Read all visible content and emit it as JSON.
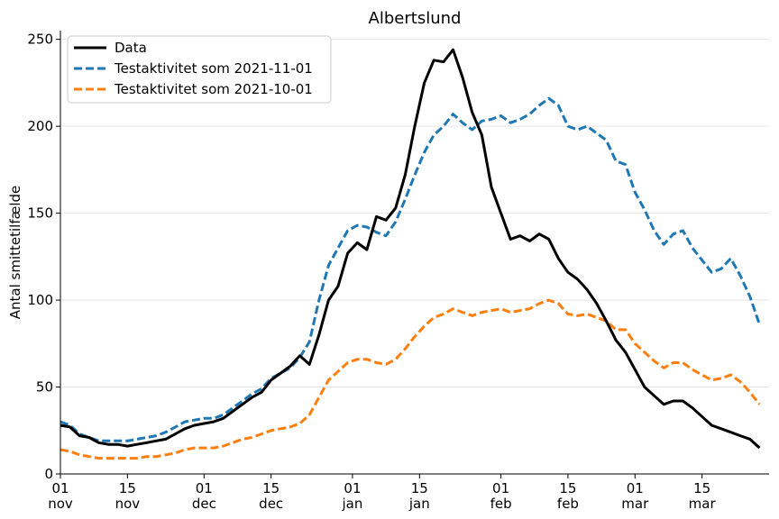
{
  "chart_data": {
    "type": "line",
    "title": "Albertslund",
    "xlabel": "",
    "ylabel": "Antal smittetilfælde",
    "ylim": [
      0,
      255
    ],
    "xlim": [
      "2021-11-01",
      "2022-03-29"
    ],
    "y_ticks": [
      0,
      50,
      100,
      150,
      200,
      250
    ],
    "x_ticks": [
      {
        "date": "2021-11-01",
        "day": "01",
        "month": "nov"
      },
      {
        "date": "2021-11-15",
        "day": "15",
        "month": "nov"
      },
      {
        "date": "2021-12-01",
        "day": "01",
        "month": "dec"
      },
      {
        "date": "2021-12-15",
        "day": "15",
        "month": "dec"
      },
      {
        "date": "2022-01-01",
        "day": "01",
        "month": "jan"
      },
      {
        "date": "2022-01-15",
        "day": "15",
        "month": "jan"
      },
      {
        "date": "2022-02-01",
        "day": "01",
        "month": "feb"
      },
      {
        "date": "2022-02-15",
        "day": "15",
        "month": "feb"
      },
      {
        "date": "2022-03-01",
        "day": "01",
        "month": "mar"
      },
      {
        "date": "2022-03-15",
        "day": "15",
        "month": "mar"
      }
    ],
    "grid": "horizontal",
    "legend": "top-left",
    "series": [
      {
        "name": "Data",
        "color": "#000000",
        "style": "solid",
        "points": [
          [
            "2021-11-01",
            28
          ],
          [
            "2021-11-03",
            27
          ],
          [
            "2021-11-05",
            22
          ],
          [
            "2021-11-07",
            21
          ],
          [
            "2021-11-09",
            18
          ],
          [
            "2021-11-11",
            17
          ],
          [
            "2021-11-13",
            17
          ],
          [
            "2021-11-15",
            16
          ],
          [
            "2021-11-17",
            17
          ],
          [
            "2021-11-19",
            18
          ],
          [
            "2021-11-21",
            19
          ],
          [
            "2021-11-23",
            20
          ],
          [
            "2021-11-25",
            23
          ],
          [
            "2021-11-27",
            26
          ],
          [
            "2021-11-29",
            28
          ],
          [
            "2021-12-01",
            29
          ],
          [
            "2021-12-03",
            30
          ],
          [
            "2021-12-05",
            32
          ],
          [
            "2021-12-07",
            36
          ],
          [
            "2021-12-09",
            40
          ],
          [
            "2021-12-11",
            44
          ],
          [
            "2021-12-13",
            47
          ],
          [
            "2021-12-15",
            54
          ],
          [
            "2021-12-17",
            58
          ],
          [
            "2021-12-19",
            62
          ],
          [
            "2021-12-21",
            68
          ],
          [
            "2021-12-23",
            63
          ],
          [
            "2021-12-25",
            80
          ],
          [
            "2021-12-27",
            100
          ],
          [
            "2021-12-29",
            108
          ],
          [
            "2021-12-31",
            127
          ],
          [
            "2022-01-02",
            133
          ],
          [
            "2022-01-04",
            129
          ],
          [
            "2022-01-06",
            148
          ],
          [
            "2022-01-08",
            146
          ],
          [
            "2022-01-10",
            153
          ],
          [
            "2022-01-12",
            172
          ],
          [
            "2022-01-14",
            200
          ],
          [
            "2022-01-16",
            225
          ],
          [
            "2022-01-18",
            238
          ],
          [
            "2022-01-20",
            237
          ],
          [
            "2022-01-22",
            244
          ],
          [
            "2022-01-24",
            228
          ],
          [
            "2022-01-26",
            208
          ],
          [
            "2022-01-28",
            195
          ],
          [
            "2022-01-30",
            165
          ],
          [
            "2022-02-01",
            150
          ],
          [
            "2022-02-03",
            135
          ],
          [
            "2022-02-05",
            137
          ],
          [
            "2022-02-07",
            134
          ],
          [
            "2022-02-09",
            138
          ],
          [
            "2022-02-11",
            135
          ],
          [
            "2022-02-13",
            124
          ],
          [
            "2022-02-15",
            116
          ],
          [
            "2022-02-17",
            112
          ],
          [
            "2022-02-19",
            106
          ],
          [
            "2022-02-21",
            98
          ],
          [
            "2022-02-23",
            88
          ],
          [
            "2022-02-25",
            77
          ],
          [
            "2022-02-27",
            70
          ],
          [
            "2022-03-01",
            60
          ],
          [
            "2022-03-03",
            50
          ],
          [
            "2022-03-05",
            45
          ],
          [
            "2022-03-07",
            40
          ],
          [
            "2022-03-09",
            42
          ],
          [
            "2022-03-11",
            42
          ],
          [
            "2022-03-13",
            38
          ],
          [
            "2022-03-15",
            33
          ],
          [
            "2022-03-17",
            28
          ],
          [
            "2022-03-19",
            26
          ],
          [
            "2022-03-21",
            24
          ],
          [
            "2022-03-23",
            22
          ],
          [
            "2022-03-25",
            20
          ],
          [
            "2022-03-27",
            15
          ]
        ]
      },
      {
        "name": "Testaktivitet som 2021-11-01",
        "color": "#1f77b4",
        "style": "dashed",
        "points": [
          [
            "2021-11-01",
            30
          ],
          [
            "2021-11-03",
            28
          ],
          [
            "2021-11-05",
            23
          ],
          [
            "2021-11-07",
            21
          ],
          [
            "2021-11-09",
            19
          ],
          [
            "2021-11-11",
            19
          ],
          [
            "2021-11-13",
            19
          ],
          [
            "2021-11-15",
            19
          ],
          [
            "2021-11-17",
            20
          ],
          [
            "2021-11-19",
            21
          ],
          [
            "2021-11-21",
            22
          ],
          [
            "2021-11-23",
            24
          ],
          [
            "2021-11-25",
            27
          ],
          [
            "2021-11-27",
            30
          ],
          [
            "2021-11-29",
            31
          ],
          [
            "2021-12-01",
            32
          ],
          [
            "2021-12-03",
            32
          ],
          [
            "2021-12-05",
            34
          ],
          [
            "2021-12-07",
            38
          ],
          [
            "2021-12-09",
            42
          ],
          [
            "2021-12-11",
            46
          ],
          [
            "2021-12-13",
            49
          ],
          [
            "2021-12-15",
            55
          ],
          [
            "2021-12-17",
            58
          ],
          [
            "2021-12-19",
            61
          ],
          [
            "2021-12-21",
            67
          ],
          [
            "2021-12-23",
            76
          ],
          [
            "2021-12-25",
            100
          ],
          [
            "2021-12-27",
            120
          ],
          [
            "2021-12-29",
            130
          ],
          [
            "2021-12-31",
            140
          ],
          [
            "2022-01-02",
            143
          ],
          [
            "2022-01-04",
            142
          ],
          [
            "2022-01-06",
            139
          ],
          [
            "2022-01-08",
            137
          ],
          [
            "2022-01-10",
            145
          ],
          [
            "2022-01-12",
            158
          ],
          [
            "2022-01-14",
            172
          ],
          [
            "2022-01-16",
            185
          ],
          [
            "2022-01-18",
            195
          ],
          [
            "2022-01-20",
            200
          ],
          [
            "2022-01-22",
            207
          ],
          [
            "2022-01-24",
            202
          ],
          [
            "2022-01-26",
            198
          ],
          [
            "2022-01-28",
            203
          ],
          [
            "2022-01-30",
            204
          ],
          [
            "2022-02-01",
            206
          ],
          [
            "2022-02-03",
            202
          ],
          [
            "2022-02-05",
            204
          ],
          [
            "2022-02-07",
            207
          ],
          [
            "2022-02-09",
            212
          ],
          [
            "2022-02-11",
            216
          ],
          [
            "2022-02-13",
            212
          ],
          [
            "2022-02-15",
            200
          ],
          [
            "2022-02-17",
            198
          ],
          [
            "2022-02-19",
            200
          ],
          [
            "2022-02-21",
            196
          ],
          [
            "2022-02-23",
            192
          ],
          [
            "2022-02-25",
            180
          ],
          [
            "2022-02-27",
            178
          ],
          [
            "2022-03-01",
            162
          ],
          [
            "2022-03-03",
            152
          ],
          [
            "2022-03-05",
            140
          ],
          [
            "2022-03-07",
            132
          ],
          [
            "2022-03-09",
            138
          ],
          [
            "2022-03-11",
            140
          ],
          [
            "2022-03-13",
            130
          ],
          [
            "2022-03-15",
            123
          ],
          [
            "2022-03-17",
            116
          ],
          [
            "2022-03-19",
            118
          ],
          [
            "2022-03-21",
            124
          ],
          [
            "2022-03-23",
            114
          ],
          [
            "2022-03-25",
            102
          ],
          [
            "2022-03-27",
            86
          ]
        ]
      },
      {
        "name": "Testaktivitet som 2021-10-01",
        "color": "#ff7f0e",
        "style": "dashed",
        "points": [
          [
            "2021-11-01",
            14
          ],
          [
            "2021-11-03",
            13
          ],
          [
            "2021-11-05",
            11
          ],
          [
            "2021-11-07",
            10
          ],
          [
            "2021-11-09",
            9
          ],
          [
            "2021-11-11",
            9
          ],
          [
            "2021-11-13",
            9
          ],
          [
            "2021-11-15",
            9
          ],
          [
            "2021-11-17",
            9
          ],
          [
            "2021-11-19",
            10
          ],
          [
            "2021-11-21",
            10
          ],
          [
            "2021-11-23",
            11
          ],
          [
            "2021-11-25",
            12
          ],
          [
            "2021-11-27",
            14
          ],
          [
            "2021-11-29",
            15
          ],
          [
            "2021-12-01",
            15
          ],
          [
            "2021-12-03",
            15
          ],
          [
            "2021-12-05",
            16
          ],
          [
            "2021-12-07",
            18
          ],
          [
            "2021-12-09",
            20
          ],
          [
            "2021-12-11",
            21
          ],
          [
            "2021-12-13",
            23
          ],
          [
            "2021-12-15",
            25
          ],
          [
            "2021-12-17",
            26
          ],
          [
            "2021-12-19",
            27
          ],
          [
            "2021-12-21",
            29
          ],
          [
            "2021-12-23",
            34
          ],
          [
            "2021-12-25",
            44
          ],
          [
            "2021-12-27",
            54
          ],
          [
            "2021-12-29",
            59
          ],
          [
            "2021-12-31",
            64
          ],
          [
            "2022-01-02",
            66
          ],
          [
            "2022-01-04",
            66
          ],
          [
            "2022-01-06",
            64
          ],
          [
            "2022-01-08",
            63
          ],
          [
            "2022-01-10",
            66
          ],
          [
            "2022-01-12",
            72
          ],
          [
            "2022-01-14",
            79
          ],
          [
            "2022-01-16",
            85
          ],
          [
            "2022-01-18",
            90
          ],
          [
            "2022-01-20",
            92
          ],
          [
            "2022-01-22",
            95
          ],
          [
            "2022-01-24",
            93
          ],
          [
            "2022-01-26",
            91
          ],
          [
            "2022-01-28",
            93
          ],
          [
            "2022-01-30",
            94
          ],
          [
            "2022-02-01",
            95
          ],
          [
            "2022-02-03",
            93
          ],
          [
            "2022-02-05",
            94
          ],
          [
            "2022-02-07",
            95
          ],
          [
            "2022-02-09",
            98
          ],
          [
            "2022-02-11",
            100
          ],
          [
            "2022-02-13",
            98
          ],
          [
            "2022-02-15",
            92
          ],
          [
            "2022-02-17",
            91
          ],
          [
            "2022-02-19",
            92
          ],
          [
            "2022-02-21",
            90
          ],
          [
            "2022-02-23",
            88
          ],
          [
            "2022-02-25",
            83
          ],
          [
            "2022-02-27",
            83
          ],
          [
            "2022-03-01",
            75
          ],
          [
            "2022-03-03",
            70
          ],
          [
            "2022-03-05",
            65
          ],
          [
            "2022-03-07",
            61
          ],
          [
            "2022-03-09",
            64
          ],
          [
            "2022-03-11",
            64
          ],
          [
            "2022-03-13",
            60
          ],
          [
            "2022-03-15",
            57
          ],
          [
            "2022-03-17",
            54
          ],
          [
            "2022-03-19",
            55
          ],
          [
            "2022-03-21",
            57
          ],
          [
            "2022-03-23",
            53
          ],
          [
            "2022-03-25",
            47
          ],
          [
            "2022-03-27",
            40
          ]
        ]
      }
    ]
  }
}
